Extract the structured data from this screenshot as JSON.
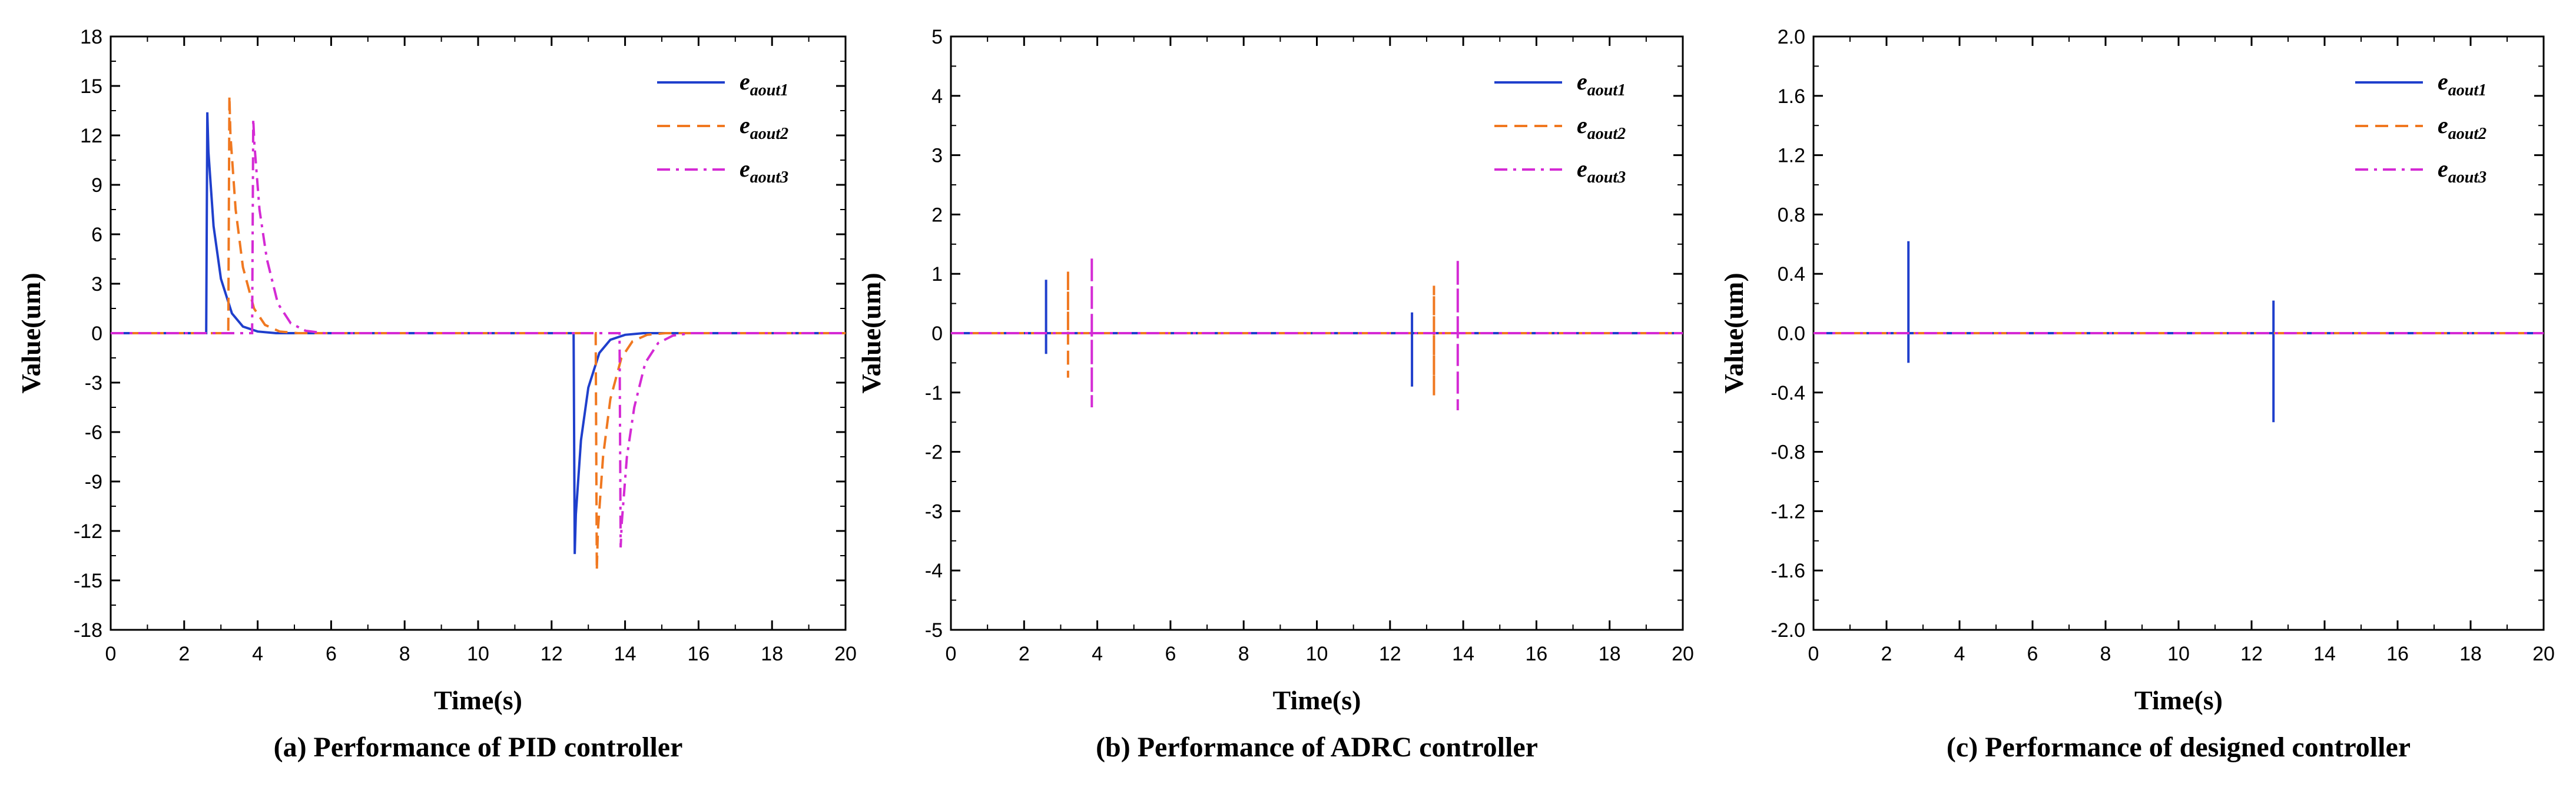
{
  "chart_data": [
    {
      "type": "line",
      "caption": "(a) Performance of PID controller",
      "xlabel": "Time(s)",
      "ylabel": "Value(um)",
      "xlim": [
        0,
        20
      ],
      "ylim": [
        -18,
        18
      ],
      "xticks": [
        "0",
        "2",
        "4",
        "6",
        "8",
        "10",
        "12",
        "14",
        "16",
        "18",
        "20"
      ],
      "yticks": [
        "18",
        "15",
        "12",
        "9",
        "6",
        "3",
        "0",
        "-3",
        "-6",
        "-9",
        "-12",
        "-15",
        "-18"
      ],
      "legend": {
        "position": "top-right",
        "entries": [
          {
            "main": "e",
            "sub": "aout1"
          },
          {
            "main": "e",
            "sub": "aout2"
          },
          {
            "main": "e",
            "sub": "aout3"
          }
        ]
      },
      "series": [
        {
          "name": "eaout1",
          "color": "#1f3fcc",
          "dash": "solid",
          "x": [
            0,
            2.6,
            2.63,
            2.66,
            2.8,
            3.0,
            3.3,
            3.6,
            4.0,
            4.5,
            12.6,
            12.63,
            12.66,
            12.8,
            13.0,
            13.3,
            13.6,
            14.0,
            14.5,
            20
          ],
          "y": [
            0,
            0,
            13.4,
            11,
            6.5,
            3.3,
            1.2,
            0.4,
            0.1,
            0,
            0,
            -13.4,
            -11,
            -6.5,
            -3.3,
            -1.2,
            -0.4,
            -0.1,
            0,
            0
          ]
        },
        {
          "name": "eaout2",
          "color": "#f07820",
          "dash": "dashed",
          "x": [
            0,
            3.2,
            3.23,
            3.26,
            3.4,
            3.6,
            3.9,
            4.2,
            4.6,
            5.1,
            13.2,
            13.23,
            13.26,
            13.4,
            13.6,
            13.9,
            14.2,
            14.6,
            15.1,
            20
          ],
          "y": [
            0,
            0,
            14.4,
            12,
            7.5,
            4,
            1.5,
            0.5,
            0.1,
            0,
            0,
            -14.4,
            -12,
            -7.5,
            -4,
            -1.5,
            -0.5,
            -0.1,
            0,
            0
          ]
        },
        {
          "name": "eaout3",
          "color": "#d42ad4",
          "dash": "dashdot",
          "x": [
            0,
            3.85,
            3.88,
            3.91,
            4.05,
            4.25,
            4.55,
            4.9,
            5.3,
            5.8,
            13.85,
            13.88,
            13.91,
            14.05,
            14.25,
            14.55,
            14.9,
            15.3,
            15.8,
            20
          ],
          "y": [
            0,
            0,
            13,
            11.5,
            7.5,
            4.5,
            1.8,
            0.6,
            0.15,
            0,
            0,
            -13,
            -11.5,
            -7.5,
            -4.5,
            -1.8,
            -0.6,
            -0.15,
            0,
            0
          ]
        }
      ]
    },
    {
      "type": "line",
      "caption": "(b) Performance of ADRC controller",
      "xlabel": "Time(s)",
      "ylabel": "Value(um)",
      "xlim": [
        0,
        20
      ],
      "ylim": [
        -5,
        5
      ],
      "xticks": [
        "0",
        "2",
        "4",
        "6",
        "8",
        "10",
        "12",
        "14",
        "16",
        "18",
        "20"
      ],
      "yticks": [
        "5",
        "4",
        "3",
        "2",
        "1",
        "0",
        "-1",
        "-2",
        "-3",
        "-4",
        "-5"
      ],
      "legend": {
        "position": "top-right",
        "entries": [
          {
            "main": "e",
            "sub": "aout1"
          },
          {
            "main": "e",
            "sub": "aout2"
          },
          {
            "main": "e",
            "sub": "aout3"
          }
        ]
      },
      "series": [
        {
          "name": "eaout1",
          "color": "#1f3fcc",
          "dash": "solid",
          "x": [
            0,
            2.6,
            2.6,
            2.6,
            2.6,
            12.6,
            12.6,
            12.6,
            12.6,
            20
          ],
          "y": [
            0,
            0,
            0.9,
            -0.35,
            0,
            0,
            0.35,
            -0.9,
            0,
            0
          ]
        },
        {
          "name": "eaout2",
          "color": "#f07820",
          "dash": "dashed",
          "x": [
            0,
            3.2,
            3.2,
            3.2,
            3.2,
            13.2,
            13.2,
            13.2,
            13.2,
            20
          ],
          "y": [
            0,
            0,
            1.05,
            -0.75,
            0,
            0,
            0.8,
            -1.05,
            0,
            0
          ]
        },
        {
          "name": "eaout3",
          "color": "#d42ad4",
          "dash": "dashdot",
          "x": [
            0,
            3.85,
            3.85,
            3.85,
            3.85,
            13.85,
            13.85,
            13.85,
            13.85,
            20
          ],
          "y": [
            0,
            0,
            1.3,
            -1.25,
            0,
            0,
            1.25,
            -1.3,
            0,
            0
          ]
        }
      ]
    },
    {
      "type": "line",
      "caption": "(c) Performance of designed controller",
      "xlabel": "Time(s)",
      "ylabel": "Value(um)",
      "xlim": [
        0,
        20
      ],
      "ylim": [
        -2,
        2
      ],
      "xticks": [
        "0",
        "2",
        "4",
        "6",
        "8",
        "10",
        "12",
        "14",
        "16",
        "18",
        "20"
      ],
      "yticks": [
        "2.0",
        "1.6",
        "1.2",
        "0.8",
        "0.4",
        "0.0",
        "-0.4",
        "-0.8",
        "-1.2",
        "-1.6",
        "-2.0"
      ],
      "legend": {
        "position": "top-right",
        "entries": [
          {
            "main": "e",
            "sub": "aout1"
          },
          {
            "main": "e",
            "sub": "aout2"
          },
          {
            "main": "e",
            "sub": "aout3"
          }
        ]
      },
      "series": [
        {
          "name": "eaout1",
          "color": "#1f3fcc",
          "dash": "solid",
          "x": [
            0,
            2.6,
            2.6,
            2.6,
            2.6,
            12.6,
            12.6,
            12.6,
            12.6,
            20
          ],
          "y": [
            0,
            0,
            0.62,
            -0.2,
            0,
            0,
            0.22,
            -0.6,
            0,
            0
          ]
        },
        {
          "name": "eaout2",
          "color": "#f07820",
          "dash": "dashed",
          "x": [
            0,
            20
          ],
          "y": [
            0,
            0
          ]
        },
        {
          "name": "eaout3",
          "color": "#d42ad4",
          "dash": "dashdot",
          "x": [
            0,
            20
          ],
          "y": [
            0,
            0
          ]
        }
      ]
    }
  ]
}
